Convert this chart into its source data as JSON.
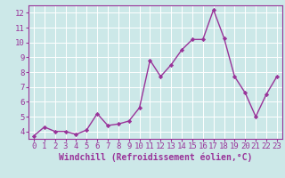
{
  "x": [
    0,
    1,
    2,
    3,
    4,
    5,
    6,
    7,
    8,
    9,
    10,
    11,
    12,
    13,
    14,
    15,
    16,
    17,
    18,
    19,
    20,
    21,
    22,
    23
  ],
  "y": [
    3.7,
    4.3,
    4.0,
    4.0,
    3.8,
    4.1,
    5.2,
    4.4,
    4.5,
    4.7,
    5.6,
    8.8,
    7.7,
    8.5,
    9.5,
    10.2,
    10.2,
    12.2,
    10.3,
    7.7,
    6.6,
    5.0,
    6.5,
    7.7
  ],
  "line_color": "#993399",
  "marker": "D",
  "marker_size": 2.2,
  "linewidth": 1.0,
  "xlabel": "Windchill (Refroidissement éolien,°C)",
  "xlim": [
    -0.5,
    23.5
  ],
  "ylim": [
    3.5,
    12.5
  ],
  "yticks": [
    4,
    5,
    6,
    7,
    8,
    9,
    10,
    11,
    12
  ],
  "xtick_labels": [
    "0",
    "1",
    "2",
    "3",
    "4",
    "5",
    "6",
    "7",
    "8",
    "9",
    "10",
    "11",
    "12",
    "13",
    "14",
    "15",
    "16",
    "17",
    "18",
    "19",
    "20",
    "21",
    "22",
    "23"
  ],
  "bg_color": "#cce8e8",
  "grid_color": "#ffffff",
  "tick_label_color": "#993399",
  "xlabel_color": "#993399",
  "xlabel_fontsize": 7.0,
  "tick_fontsize": 6.5,
  "spine_color": "#993399"
}
